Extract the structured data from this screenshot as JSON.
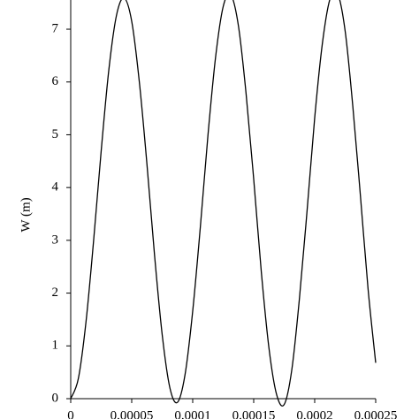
{
  "chart_data": {
    "type": "line",
    "y_label": "W (m)",
    "x": [
      0,
      6.25e-06,
      1.25e-05,
      1.875e-05,
      2.5e-05,
      3.125e-05,
      3.75e-05,
      4.375e-05,
      5e-05,
      5.625e-05,
      6.25e-05,
      6.875e-05,
      7.5e-05,
      8.125e-05,
      8.75e-05,
      9.375e-05,
      0.0001,
      0.00010625,
      0.0001125,
      0.00011875,
      0.000125,
      0.00013125,
      0.0001375,
      0.00014375,
      0.00015,
      0.00015625,
      0.0001625,
      0.00016875,
      0.000175,
      0.00018125,
      0.0001875,
      0.00019375,
      0.0002,
      0.00020625,
      0.0002125,
      0.00021875,
      0.000225,
      0.00023125,
      0.0002375,
      0.00024375,
      0.00025
    ],
    "series": [
      {
        "color": "#000000",
        "values": [
          0,
          0.38,
          1.45,
          2.99,
          4.7,
          6.23,
          7.26,
          7.59,
          7.15,
          6.0,
          4.44,
          2.71,
          1.21,
          0.21,
          -0.07,
          0.46,
          1.66,
          3.25,
          4.99,
          6.47,
          7.43,
          7.65,
          7.06,
          5.78,
          4.16,
          2.4,
          0.96,
          0.08,
          -0.11,
          0.55,
          1.9,
          3.56,
          5.32,
          6.72,
          7.57,
          7.68,
          6.96,
          5.54,
          3.84,
          2.08,
          0.68
        ]
      }
    ],
    "xlim": [
      0,
      0.00025
    ],
    "ylim": [
      0,
      7.6
    ],
    "xticks": [
      0,
      5e-05,
      0.0001,
      0.00015,
      0.0002,
      0.00025
    ],
    "yticks": [
      0,
      1,
      2,
      3,
      4,
      5,
      6,
      7
    ]
  }
}
